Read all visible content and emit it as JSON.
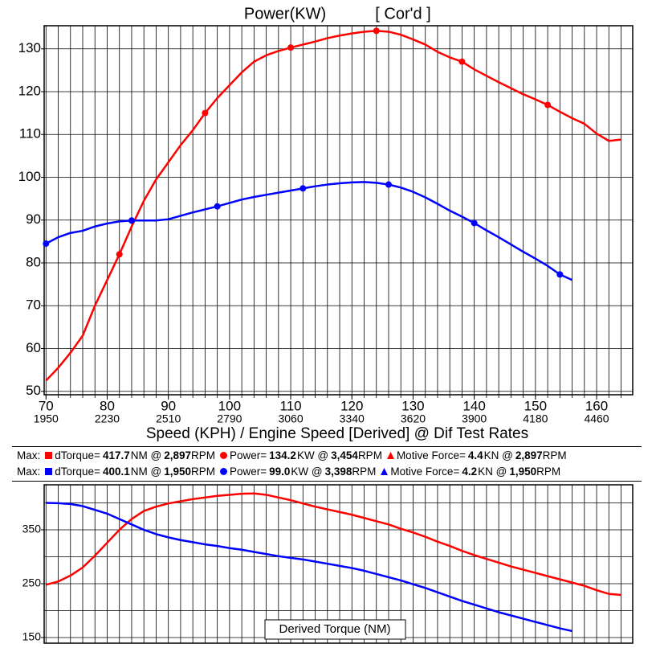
{
  "chart_data": [
    {
      "type": "line",
      "title": "Power(KW)",
      "subtitle": "[ Cor'd ]",
      "xlabel": "Speed (KPH) / Engine Speed [Derived] @ Dif Test Rates",
      "x": [
        70,
        72,
        74,
        76,
        78,
        80,
        82,
        84,
        86,
        88,
        90,
        92,
        94,
        96,
        98,
        100,
        102,
        104,
        106,
        108,
        110,
        112,
        114,
        116,
        118,
        120,
        122,
        124,
        126,
        128,
        130,
        132,
        134,
        136,
        138,
        140,
        142,
        144,
        146,
        148,
        150,
        152,
        154,
        156,
        158,
        160,
        162,
        164
      ],
      "xlim": [
        69.7,
        165.9
      ],
      "xticks": [
        70,
        80,
        90,
        100,
        110,
        120,
        130,
        140,
        150,
        160
      ],
      "xticks2": [
        1950,
        2230,
        2510,
        2790,
        3060,
        3340,
        3620,
        3900,
        4180,
        4460
      ],
      "ylim": [
        49.2,
        135.4
      ],
      "yticks": [
        50,
        60,
        70,
        80,
        90,
        100,
        110,
        120,
        130
      ],
      "grid": true,
      "series": [
        {
          "name": "Power",
          "color": "#ff0000",
          "markers": [
            6,
            13,
            20,
            27,
            34,
            41
          ],
          "values": [
            52.5,
            55.5,
            59,
            63,
            70,
            76,
            82,
            88.5,
            94.5,
            99.5,
            103.5,
            107.5,
            111,
            115,
            118.5,
            121.5,
            124.5,
            127,
            128.5,
            129.5,
            130.3,
            131,
            131.7,
            132.5,
            133.1,
            133.6,
            134,
            134.2,
            134,
            133.3,
            132.2,
            131,
            129.3,
            128,
            127,
            125.2,
            123.7,
            122.2,
            120.8,
            119.4,
            118.2,
            116.9,
            115.3,
            113.8,
            112.5,
            110.2,
            108.5,
            108.8
          ]
        },
        {
          "name": "Power",
          "color": "#0000ff",
          "markers": [
            0,
            7,
            14,
            21,
            28,
            35,
            42
          ],
          "values": [
            84.5,
            86,
            87,
            87.5,
            88.5,
            89.2,
            89.7,
            89.9,
            89.9,
            89.9,
            90.2,
            91,
            91.8,
            92.5,
            93.2,
            94,
            94.8,
            95.4,
            95.9,
            96.4,
            96.9,
            97.4,
            97.9,
            98.3,
            98.6,
            98.8,
            98.9,
            98.7,
            98.3,
            97.6,
            96.6,
            95.3,
            93.8,
            92.2,
            90.8,
            89.3,
            87.6,
            86,
            84.3,
            82.6,
            81,
            79.3,
            77.3,
            76,
            null,
            null,
            null,
            null
          ]
        }
      ],
      "legend": [
        {
          "prefix": "Max:",
          "color": "#ff0000",
          "items": [
            {
              "symbol": "square",
              "label": "dTorque=",
              "value": "417.7",
              "unit": "NM @",
              "rpm": "2,897",
              "rpm_unit": "RPM"
            },
            {
              "symbol": "circle",
              "label": "Power=",
              "value": "134.2",
              "unit": "KW @",
              "rpm": "3,454",
              "rpm_unit": "RPM"
            },
            {
              "symbol": "triangle",
              "label": "Motive Force=",
              "value": "4.4",
              "unit": "KN @",
              "rpm": "2,897",
              "rpm_unit": "RPM"
            }
          ]
        },
        {
          "prefix": "Max:",
          "color": "#0000ff",
          "items": [
            {
              "symbol": "square",
              "label": "dTorque=",
              "value": "400.1",
              "unit": "NM @",
              "rpm": "1,950",
              "rpm_unit": "RPM"
            },
            {
              "symbol": "circle",
              "label": "Power=",
              "value": "99.0",
              "unit": "KW @",
              "rpm": "3,398",
              "rpm_unit": "RPM"
            },
            {
              "symbol": "triangle",
              "label": "Motive Force=",
              "value": "4.2",
              "unit": "KN @",
              "rpm": "1,950",
              "rpm_unit": "RPM"
            }
          ]
        }
      ]
    },
    {
      "type": "line",
      "title": "Derived Torque (NM)",
      "x": [
        70,
        72,
        74,
        76,
        78,
        80,
        82,
        84,
        86,
        88,
        90,
        92,
        94,
        96,
        98,
        100,
        102,
        104,
        106,
        108,
        110,
        112,
        114,
        116,
        118,
        120,
        122,
        124,
        126,
        128,
        130,
        132,
        134,
        136,
        138,
        140,
        142,
        144,
        146,
        148,
        150,
        152,
        154,
        156,
        158,
        160,
        162,
        164
      ],
      "xlim": [
        69.7,
        165.9
      ],
      "ylim": [
        139.5,
        433.6
      ],
      "yticks": [
        150,
        250,
        350
      ],
      "ygrid": [
        150,
        200,
        250,
        300,
        350,
        400
      ],
      "grid": true,
      "series": [
        {
          "name": "dTorque",
          "color": "#ff0000",
          "values": [
            248,
            254,
            265,
            280,
            302,
            326,
            350,
            370,
            385,
            393,
            399,
            403,
            407,
            410,
            413,
            415,
            417,
            417.5,
            415,
            410,
            405,
            399,
            393,
            388,
            383,
            378,
            372,
            366,
            360,
            352,
            345,
            337,
            328,
            320,
            311,
            303,
            296,
            289,
            282,
            276,
            270,
            264,
            258,
            252,
            246,
            238,
            231,
            229
          ]
        },
        {
          "name": "dTorque",
          "color": "#0000ff",
          "values": [
            400,
            399.5,
            398,
            394,
            387,
            380,
            370,
            360,
            350,
            342,
            336,
            331,
            327,
            323,
            320,
            316,
            313,
            309,
            305,
            301,
            298,
            295,
            291,
            287,
            283,
            279,
            274,
            268,
            262,
            256,
            249,
            242,
            234,
            226,
            218,
            211,
            204,
            197,
            191,
            185,
            179,
            173,
            167,
            162,
            null,
            null,
            null,
            null
          ]
        }
      ]
    }
  ]
}
